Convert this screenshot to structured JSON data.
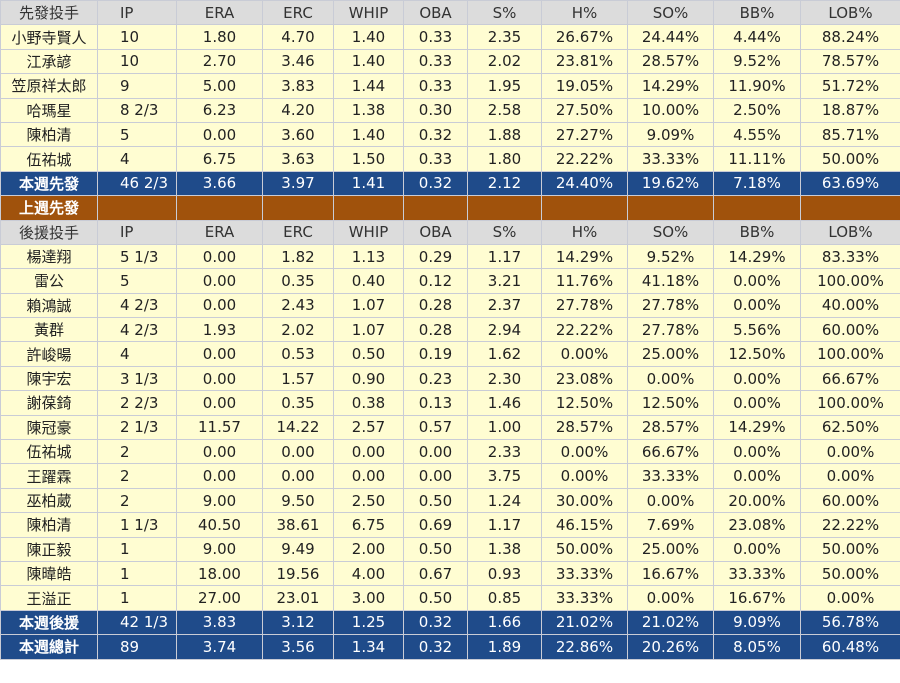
{
  "columns": [
    "IP",
    "ERA",
    "ERC",
    "WHIP",
    "OBA",
    "S%",
    "H%",
    "SO%",
    "BB%",
    "LOB%"
  ],
  "starters_header": "先發投手",
  "starters": [
    [
      "小野寺賢人",
      "10",
      "1.80",
      "4.70",
      "1.40",
      "0.33",
      "2.35",
      "26.67%",
      "24.44%",
      "4.44%",
      "88.24%"
    ],
    [
      "江承諺",
      "10",
      "2.70",
      "3.46",
      "1.40",
      "0.33",
      "2.02",
      "23.81%",
      "28.57%",
      "9.52%",
      "78.57%"
    ],
    [
      "笠原祥太郎",
      "9",
      "5.00",
      "3.83",
      "1.44",
      "0.33",
      "1.95",
      "19.05%",
      "14.29%",
      "11.90%",
      "51.72%"
    ],
    [
      "哈瑪星",
      "8 2/3",
      "6.23",
      "4.20",
      "1.38",
      "0.30",
      "2.58",
      "27.50%",
      "10.00%",
      "2.50%",
      "18.87%"
    ],
    [
      "陳柏清",
      "5",
      "0.00",
      "3.60",
      "1.40",
      "0.32",
      "1.88",
      "27.27%",
      "9.09%",
      "4.55%",
      "85.71%"
    ],
    [
      "伍祐城",
      "4",
      "6.75",
      "3.63",
      "1.50",
      "0.33",
      "1.80",
      "22.22%",
      "33.33%",
      "11.11%",
      "50.00%"
    ]
  ],
  "starters_total": [
    "本週先發",
    "46 2/3",
    "3.66",
    "3.97",
    "1.41",
    "0.32",
    "2.12",
    "24.40%",
    "19.62%",
    "7.18%",
    "63.69%"
  ],
  "last_week_label": "上週先發",
  "relievers_header": "後援投手",
  "relievers": [
    [
      "楊達翔",
      "5 1/3",
      "0.00",
      "1.82",
      "1.13",
      "0.29",
      "1.17",
      "14.29%",
      "9.52%",
      "14.29%",
      "83.33%"
    ],
    [
      "雷公",
      "5",
      "0.00",
      "0.35",
      "0.40",
      "0.12",
      "3.21",
      "11.76%",
      "41.18%",
      "0.00%",
      "100.00%"
    ],
    [
      "賴鴻誠",
      "4 2/3",
      "0.00",
      "2.43",
      "1.07",
      "0.28",
      "2.37",
      "27.78%",
      "27.78%",
      "0.00%",
      "40.00%"
    ],
    [
      "黃群",
      "4 2/3",
      "1.93",
      "2.02",
      "1.07",
      "0.28",
      "2.94",
      "22.22%",
      "27.78%",
      "5.56%",
      "60.00%"
    ],
    [
      "許峻暘",
      "4",
      "0.00",
      "0.53",
      "0.50",
      "0.19",
      "1.62",
      "0.00%",
      "25.00%",
      "12.50%",
      "100.00%"
    ],
    [
      "陳宇宏",
      "3 1/3",
      "0.00",
      "1.57",
      "0.90",
      "0.23",
      "2.30",
      "23.08%",
      "0.00%",
      "0.00%",
      "66.67%"
    ],
    [
      "謝葆錡",
      "2 2/3",
      "0.00",
      "0.35",
      "0.38",
      "0.13",
      "1.46",
      "12.50%",
      "12.50%",
      "0.00%",
      "100.00%"
    ],
    [
      "陳冠豪",
      "2 1/3",
      "11.57",
      "14.22",
      "2.57",
      "0.57",
      "1.00",
      "28.57%",
      "28.57%",
      "14.29%",
      "62.50%"
    ],
    [
      "伍祐城",
      "2",
      "0.00",
      "0.00",
      "0.00",
      "0.00",
      "2.33",
      "0.00%",
      "66.67%",
      "0.00%",
      "0.00%"
    ],
    [
      "王躍霖",
      "2",
      "0.00",
      "0.00",
      "0.00",
      "0.00",
      "3.75",
      "0.00%",
      "33.33%",
      "0.00%",
      "0.00%"
    ],
    [
      "巫柏葳",
      "2",
      "9.00",
      "9.50",
      "2.50",
      "0.50",
      "1.24",
      "30.00%",
      "0.00%",
      "20.00%",
      "60.00%"
    ],
    [
      "陳柏清",
      "1 1/3",
      "40.50",
      "38.61",
      "6.75",
      "0.69",
      "1.17",
      "46.15%",
      "7.69%",
      "23.08%",
      "22.22%"
    ],
    [
      "陳正毅",
      "1",
      "9.00",
      "9.49",
      "2.00",
      "0.50",
      "1.38",
      "50.00%",
      "25.00%",
      "0.00%",
      "50.00%"
    ],
    [
      "陳暐皓",
      "1",
      "18.00",
      "19.56",
      "4.00",
      "0.67",
      "0.93",
      "33.33%",
      "16.67%",
      "33.33%",
      "50.00%"
    ],
    [
      "王溢正",
      "1",
      "27.00",
      "23.01",
      "3.00",
      "0.50",
      "0.85",
      "33.33%",
      "0.00%",
      "16.67%",
      "0.00%"
    ]
  ],
  "relievers_total": [
    "本週後援",
    "42 1/3",
    "3.83",
    "3.12",
    "1.25",
    "0.32",
    "1.66",
    "21.02%",
    "21.02%",
    "9.09%",
    "56.78%"
  ],
  "grand_total": [
    "本週總計",
    "89",
    "3.74",
    "3.56",
    "1.34",
    "0.32",
    "1.89",
    "22.86%",
    "20.26%",
    "8.05%",
    "60.48%"
  ]
}
